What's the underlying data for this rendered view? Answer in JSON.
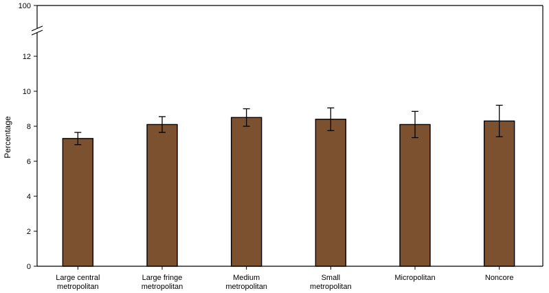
{
  "chart_data": {
    "type": "bar",
    "title": "",
    "ylabel": "Percentage",
    "xlabel": "",
    "categories": [
      [
        "Large central",
        "metropolitan"
      ],
      [
        "Large fringe",
        "metropolitan"
      ],
      [
        "Medium",
        "metropolitan"
      ],
      [
        "Small",
        "metropolitan"
      ],
      [
        "Micropolitan"
      ],
      [
        "Noncore"
      ]
    ],
    "values": [
      7.3,
      8.1,
      8.5,
      8.4,
      8.1,
      8.3
    ],
    "ci_lower": [
      6.95,
      7.65,
      8.0,
      7.75,
      7.35,
      7.4
    ],
    "ci_upper": [
      7.65,
      8.55,
      9.0,
      9.05,
      8.85,
      9.2
    ],
    "y_ticks": [
      0,
      2,
      4,
      6,
      8,
      10,
      12
    ],
    "y_break_tick": 100,
    "ylim": [
      0,
      100
    ],
    "axis_break": true,
    "bar_color": "#7b5130",
    "grid": false
  }
}
